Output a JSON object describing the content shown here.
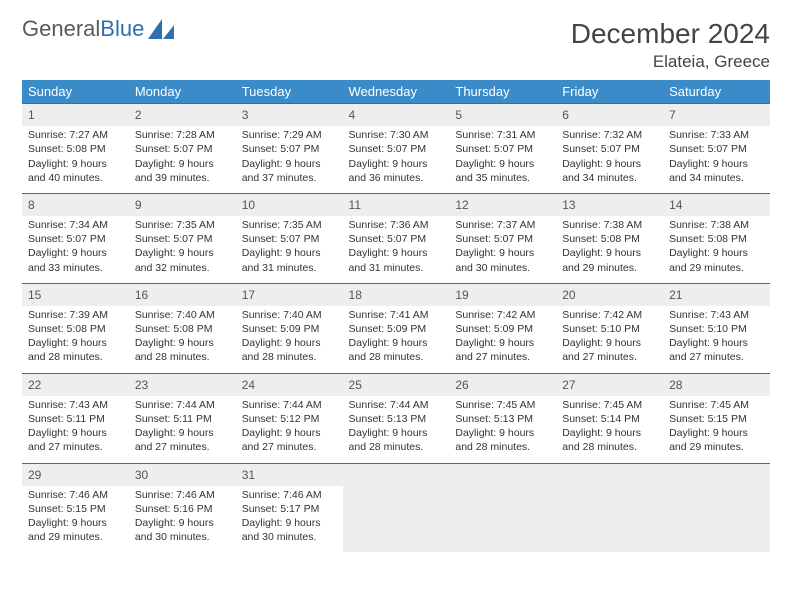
{
  "brand": {
    "part1": "General",
    "part2": "Blue"
  },
  "title": "December 2024",
  "location": "Elateia, Greece",
  "colors": {
    "header_bg": "#3b8bc8",
    "header_text": "#ffffff",
    "border": "#2f6fb0",
    "daynum_bg": "#eeeeee",
    "text": "#333333",
    "brand_blue": "#2f6fb0"
  },
  "typography": {
    "title_fontsize": 28,
    "location_fontsize": 17,
    "th_fontsize": 13,
    "cell_fontsize": 10.5
  },
  "day_headers": [
    "Sunday",
    "Monday",
    "Tuesday",
    "Wednesday",
    "Thursday",
    "Friday",
    "Saturday"
  ],
  "weeks": [
    [
      {
        "n": "1",
        "sr": "Sunrise: 7:27 AM",
        "ss": "Sunset: 5:08 PM",
        "d1": "Daylight: 9 hours",
        "d2": "and 40 minutes."
      },
      {
        "n": "2",
        "sr": "Sunrise: 7:28 AM",
        "ss": "Sunset: 5:07 PM",
        "d1": "Daylight: 9 hours",
        "d2": "and 39 minutes."
      },
      {
        "n": "3",
        "sr": "Sunrise: 7:29 AM",
        "ss": "Sunset: 5:07 PM",
        "d1": "Daylight: 9 hours",
        "d2": "and 37 minutes."
      },
      {
        "n": "4",
        "sr": "Sunrise: 7:30 AM",
        "ss": "Sunset: 5:07 PM",
        "d1": "Daylight: 9 hours",
        "d2": "and 36 minutes."
      },
      {
        "n": "5",
        "sr": "Sunrise: 7:31 AM",
        "ss": "Sunset: 5:07 PM",
        "d1": "Daylight: 9 hours",
        "d2": "and 35 minutes."
      },
      {
        "n": "6",
        "sr": "Sunrise: 7:32 AM",
        "ss": "Sunset: 5:07 PM",
        "d1": "Daylight: 9 hours",
        "d2": "and 34 minutes."
      },
      {
        "n": "7",
        "sr": "Sunrise: 7:33 AM",
        "ss": "Sunset: 5:07 PM",
        "d1": "Daylight: 9 hours",
        "d2": "and 34 minutes."
      }
    ],
    [
      {
        "n": "8",
        "sr": "Sunrise: 7:34 AM",
        "ss": "Sunset: 5:07 PM",
        "d1": "Daylight: 9 hours",
        "d2": "and 33 minutes."
      },
      {
        "n": "9",
        "sr": "Sunrise: 7:35 AM",
        "ss": "Sunset: 5:07 PM",
        "d1": "Daylight: 9 hours",
        "d2": "and 32 minutes."
      },
      {
        "n": "10",
        "sr": "Sunrise: 7:35 AM",
        "ss": "Sunset: 5:07 PM",
        "d1": "Daylight: 9 hours",
        "d2": "and 31 minutes."
      },
      {
        "n": "11",
        "sr": "Sunrise: 7:36 AM",
        "ss": "Sunset: 5:07 PM",
        "d1": "Daylight: 9 hours",
        "d2": "and 31 minutes."
      },
      {
        "n": "12",
        "sr": "Sunrise: 7:37 AM",
        "ss": "Sunset: 5:07 PM",
        "d1": "Daylight: 9 hours",
        "d2": "and 30 minutes."
      },
      {
        "n": "13",
        "sr": "Sunrise: 7:38 AM",
        "ss": "Sunset: 5:08 PM",
        "d1": "Daylight: 9 hours",
        "d2": "and 29 minutes."
      },
      {
        "n": "14",
        "sr": "Sunrise: 7:38 AM",
        "ss": "Sunset: 5:08 PM",
        "d1": "Daylight: 9 hours",
        "d2": "and 29 minutes."
      }
    ],
    [
      {
        "n": "15",
        "sr": "Sunrise: 7:39 AM",
        "ss": "Sunset: 5:08 PM",
        "d1": "Daylight: 9 hours",
        "d2": "and 28 minutes."
      },
      {
        "n": "16",
        "sr": "Sunrise: 7:40 AM",
        "ss": "Sunset: 5:08 PM",
        "d1": "Daylight: 9 hours",
        "d2": "and 28 minutes."
      },
      {
        "n": "17",
        "sr": "Sunrise: 7:40 AM",
        "ss": "Sunset: 5:09 PM",
        "d1": "Daylight: 9 hours",
        "d2": "and 28 minutes."
      },
      {
        "n": "18",
        "sr": "Sunrise: 7:41 AM",
        "ss": "Sunset: 5:09 PM",
        "d1": "Daylight: 9 hours",
        "d2": "and 28 minutes."
      },
      {
        "n": "19",
        "sr": "Sunrise: 7:42 AM",
        "ss": "Sunset: 5:09 PM",
        "d1": "Daylight: 9 hours",
        "d2": "and 27 minutes."
      },
      {
        "n": "20",
        "sr": "Sunrise: 7:42 AM",
        "ss": "Sunset: 5:10 PM",
        "d1": "Daylight: 9 hours",
        "d2": "and 27 minutes."
      },
      {
        "n": "21",
        "sr": "Sunrise: 7:43 AM",
        "ss": "Sunset: 5:10 PM",
        "d1": "Daylight: 9 hours",
        "d2": "and 27 minutes."
      }
    ],
    [
      {
        "n": "22",
        "sr": "Sunrise: 7:43 AM",
        "ss": "Sunset: 5:11 PM",
        "d1": "Daylight: 9 hours",
        "d2": "and 27 minutes."
      },
      {
        "n": "23",
        "sr": "Sunrise: 7:44 AM",
        "ss": "Sunset: 5:11 PM",
        "d1": "Daylight: 9 hours",
        "d2": "and 27 minutes."
      },
      {
        "n": "24",
        "sr": "Sunrise: 7:44 AM",
        "ss": "Sunset: 5:12 PM",
        "d1": "Daylight: 9 hours",
        "d2": "and 27 minutes."
      },
      {
        "n": "25",
        "sr": "Sunrise: 7:44 AM",
        "ss": "Sunset: 5:13 PM",
        "d1": "Daylight: 9 hours",
        "d2": "and 28 minutes."
      },
      {
        "n": "26",
        "sr": "Sunrise: 7:45 AM",
        "ss": "Sunset: 5:13 PM",
        "d1": "Daylight: 9 hours",
        "d2": "and 28 minutes."
      },
      {
        "n": "27",
        "sr": "Sunrise: 7:45 AM",
        "ss": "Sunset: 5:14 PM",
        "d1": "Daylight: 9 hours",
        "d2": "and 28 minutes."
      },
      {
        "n": "28",
        "sr": "Sunrise: 7:45 AM",
        "ss": "Sunset: 5:15 PM",
        "d1": "Daylight: 9 hours",
        "d2": "and 29 minutes."
      }
    ],
    [
      {
        "n": "29",
        "sr": "Sunrise: 7:46 AM",
        "ss": "Sunset: 5:15 PM",
        "d1": "Daylight: 9 hours",
        "d2": "and 29 minutes."
      },
      {
        "n": "30",
        "sr": "Sunrise: 7:46 AM",
        "ss": "Sunset: 5:16 PM",
        "d1": "Daylight: 9 hours",
        "d2": "and 30 minutes."
      },
      {
        "n": "31",
        "sr": "Sunrise: 7:46 AM",
        "ss": "Sunset: 5:17 PM",
        "d1": "Daylight: 9 hours",
        "d2": "and 30 minutes."
      },
      null,
      null,
      null,
      null
    ]
  ]
}
